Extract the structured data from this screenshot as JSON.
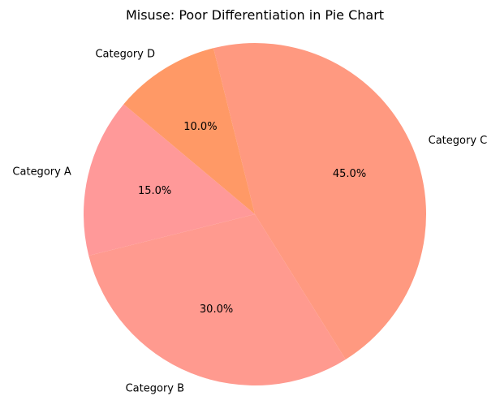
{
  "chart_data": {
    "type": "pie",
    "title": "Misuse: Poor Differentiation in Pie Chart",
    "categories": [
      "Category A",
      "Category B",
      "Category C",
      "Category D"
    ],
    "values": [
      15,
      30,
      45,
      10
    ],
    "percent_labels": [
      "15.0%",
      "30.0%",
      "45.0%",
      "10.0%"
    ],
    "colors": [
      "#ff9999",
      "#ff9a8f",
      "#ff9980",
      "#ff9966"
    ],
    "start_angle_deg": 140,
    "direction": "counterclockwise",
    "legend": "none"
  }
}
